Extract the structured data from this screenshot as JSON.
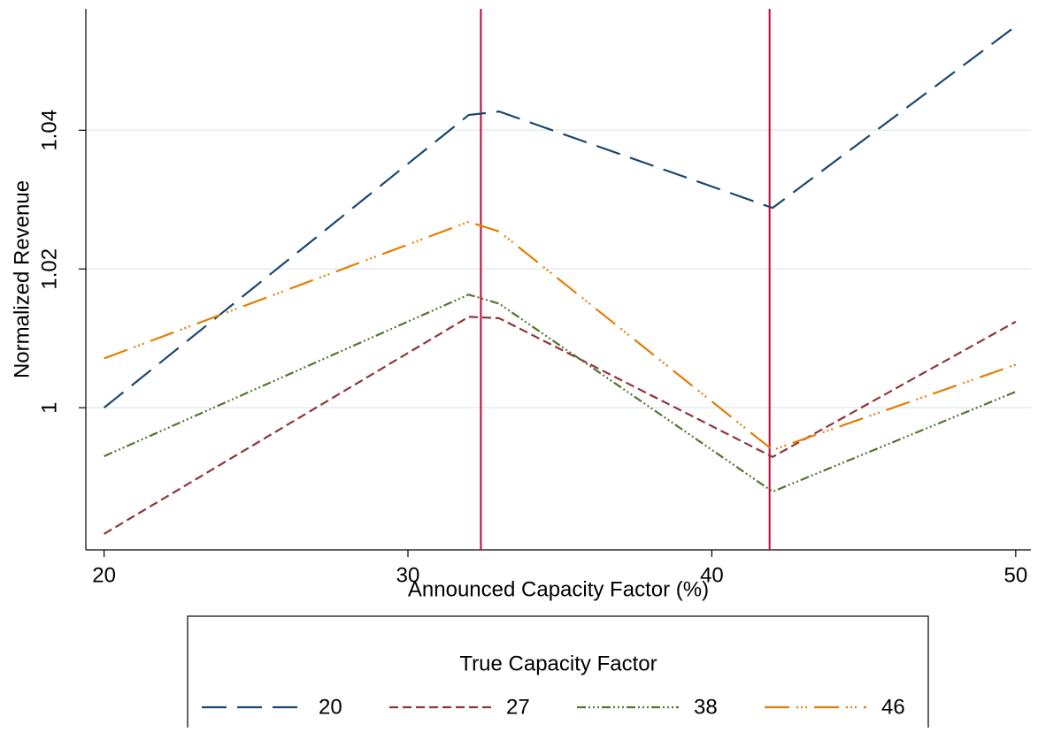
{
  "chart_data": {
    "type": "line",
    "x_label": "Announced Capacity Factor (%)",
    "y_label": "Normalized Revenue",
    "legend_title": "True Capacity Factor",
    "x": [
      20,
      32,
      33,
      42,
      50
    ],
    "series": [
      {
        "name": "20",
        "color": "#1a476f",
        "values": [
          1.0,
          1.0422,
          1.0427,
          1.0288,
          1.055
        ]
      },
      {
        "name": "27",
        "color": "#90353b",
        "values": [
          0.9818,
          1.0131,
          1.0129,
          0.9929,
          1.0124
        ]
      },
      {
        "name": "38",
        "color": "#55752f",
        "values": [
          0.993,
          1.0163,
          1.015,
          0.9879,
          1.0023
        ]
      },
      {
        "name": "46",
        "color": "#e37e00",
        "values": [
          1.0071,
          1.0268,
          1.0254,
          0.9939,
          1.0062
        ]
      }
    ],
    "reference_lines": [
      32.4,
      41.9
    ],
    "reference_color": "#c10534",
    "xlim": [
      19.4,
      50.5
    ],
    "xticks": [
      20,
      30,
      40,
      50
    ],
    "ylim": [
      0.9795,
      1.0575
    ],
    "yticks": [
      1,
      1.02,
      1.04
    ],
    "grid": true,
    "legend": "bottom"
  }
}
